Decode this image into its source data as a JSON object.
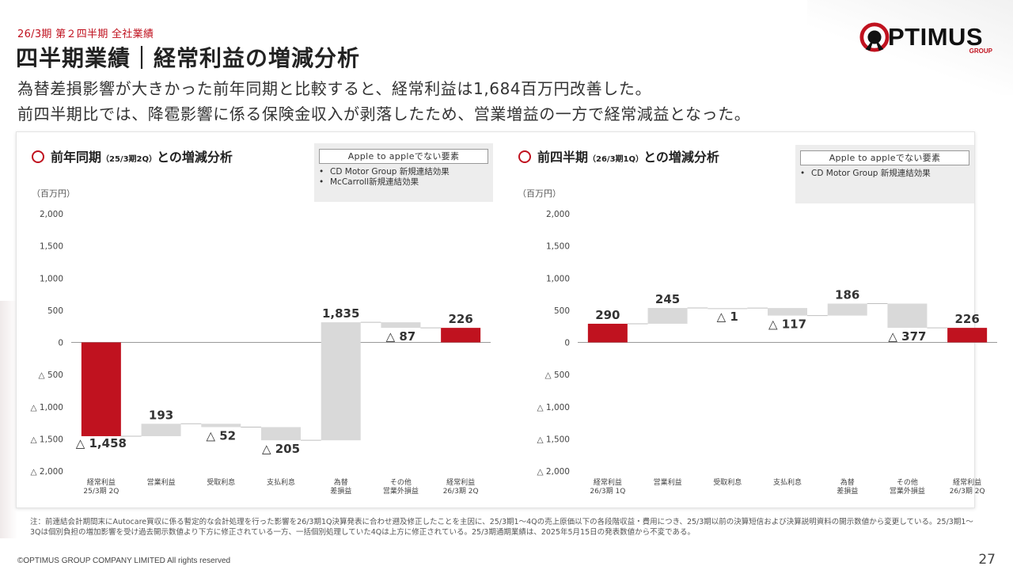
{
  "header": {
    "subtitle": "26/3期 第２四半期 全社業績",
    "title": "四半期業績｜経常利益の増減分析",
    "desc_line1": "為替差損影響が大きかった前年同期と比較すると、経常利益は1,684百万円改善した。",
    "desc_line2": "前四半期比では、降雹影響に係る保険金収入が剥落したため、営業増益の一方で経常減益となった。"
  },
  "logo": {
    "text": "PTIMUS",
    "group": "GROUP"
  },
  "colors": {
    "accent": "#c0121f",
    "neutral_bar": "#d9d9d9",
    "axis": "#555555"
  },
  "left_panel": {
    "title_main": "前年同期",
    "title_small": "（25/3期2Q）",
    "title_suffix": "との増減分析",
    "unit": "（百万円）",
    "note_label": "Apple to appleでない要素",
    "notes": [
      "CD Motor Group 新規連結効果",
      "McCarroll新規連結効果"
    ]
  },
  "right_panel": {
    "title_main": "前四半期",
    "title_small": "（26/3期1Q）",
    "title_suffix": "との増減分析",
    "unit": "（百万円）",
    "note_label": "Apple to appleでない要素",
    "notes": [
      "CD Motor Group 新規連結効果"
    ]
  },
  "chart_data": [
    {
      "type": "bar",
      "subtype": "waterfall",
      "title": "前年同期（25/3期2Q）との増減分析",
      "ylabel": "（百万円）",
      "ylim": [
        -2000,
        2000
      ],
      "yticks": [
        2000,
        1500,
        1000,
        500,
        0,
        -500,
        -1000,
        -1500,
        -2000
      ],
      "ytick_labels": [
        "2,000",
        "1,500",
        "1,000",
        "500",
        "0",
        "△ 500",
        "△ 1,000",
        "△ 1,500",
        "△ 2,000"
      ],
      "categories": [
        [
          "経常利益",
          "25/3期 2Q"
        ],
        [
          "営業利益"
        ],
        [
          "受取利息"
        ],
        [
          "支払利息"
        ],
        [
          "為替",
          "差損益"
        ],
        [
          "その他",
          "営業外損益"
        ],
        [
          "経常利益",
          "26/3期 2Q"
        ]
      ],
      "values": [
        -1458,
        193,
        -52,
        -205,
        1835,
        -87,
        226
      ],
      "kinds": [
        "total",
        "delta",
        "delta",
        "delta",
        "delta",
        "delta",
        "total"
      ],
      "labels": [
        "△ 1,458",
        "193",
        "△ 52",
        "△ 205",
        "1,835",
        "△ 87",
        "226"
      ]
    },
    {
      "type": "bar",
      "subtype": "waterfall",
      "title": "前四半期（26/3期1Q）との増減分析",
      "ylabel": "（百万円）",
      "ylim": [
        -2000,
        2000
      ],
      "yticks": [
        2000,
        1500,
        1000,
        500,
        0,
        -500,
        -1000,
        -1500,
        -2000
      ],
      "ytick_labels": [
        "2,000",
        "1,500",
        "1,000",
        "500",
        "0",
        "△ 500",
        "△ 1,000",
        "△ 1,500",
        "△ 2,000"
      ],
      "categories": [
        [
          "経常利益",
          "26/3期 1Q"
        ],
        [
          "営業利益"
        ],
        [
          "受取利息"
        ],
        [
          "支払利息"
        ],
        [
          "為替",
          "差損益"
        ],
        [
          "その他",
          "営業外損益"
        ],
        [
          "経常利益",
          "26/3期 2Q"
        ]
      ],
      "values": [
        290,
        245,
        -1,
        -117,
        186,
        -377,
        226
      ],
      "kinds": [
        "total",
        "delta",
        "delta",
        "delta",
        "delta",
        "delta",
        "total"
      ],
      "labels": [
        "290",
        "245",
        "△ 1",
        "△ 117",
        "186",
        "△ 377",
        "226"
      ]
    }
  ],
  "footnote": "注：前連結会計期間末にAutocare買収に係る暫定的な会計処理を行った影響を26/3期1Q決算発表に合わせ遡及修正したことを主因に、25/3期1～4Qの売上原価以下の各段階収益・費用につき、25/3期以前の決算短信および決算説明資料の開示数値から変更している。25/3期1～3Qは個別負担の増加影響を受け過去開示数値より下方に修正されている一方、一括個別処理していた4Qは上方に修正されている。25/3期通期業績は、2025年5月15日の発表数値から不変である。",
  "copyright": "©OPTIMUS GROUP COMPANY LIMITED All rights reserved",
  "page_number": "27"
}
